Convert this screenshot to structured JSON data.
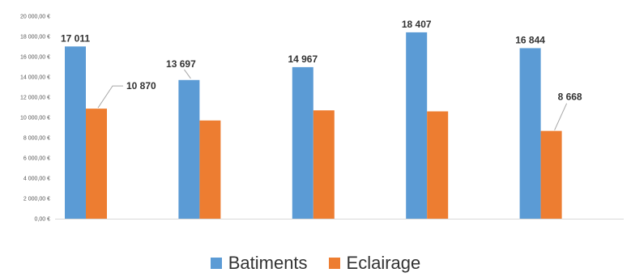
{
  "chart_data": {
    "type": "bar",
    "title": "",
    "xlabel": "",
    "ylabel": "",
    "categories": [
      "",
      "",
      "",
      "",
      ""
    ],
    "ylim": [
      0,
      20000
    ],
    "y_ticks": [
      "0,00 €",
      "2 000,00 €",
      "4 000,00 €",
      "6 000,00 €",
      "8 000,00 €",
      "10 000,00 €",
      "12 000,00 €",
      "14 000,00 €",
      "16 000,00 €",
      "18 000,00 €",
      "20 000,00 €"
    ],
    "grid": false,
    "legend_position": "bottom",
    "series": [
      {
        "name": "Batiments",
        "color": "#5B9BD5",
        "values": [
          17011,
          13697,
          14967,
          18407,
          16844
        ]
      },
      {
        "name": "Eclairage",
        "color": "#ED7D31",
        "values": [
          10870,
          9700,
          10700,
          10600,
          8668
        ]
      }
    ],
    "data_labels": [
      {
        "series": 0,
        "index": 0,
        "text": "17 011"
      },
      {
        "series": 0,
        "index": 1,
        "text": "13 697"
      },
      {
        "series": 0,
        "index": 2,
        "text": "14 967"
      },
      {
        "series": 0,
        "index": 3,
        "text": "18 407"
      },
      {
        "series": 0,
        "index": 4,
        "text": "16 844"
      },
      {
        "series": 1,
        "index": 0,
        "text": "10 870"
      },
      {
        "series": 1,
        "index": 4,
        "text": "8 668"
      }
    ]
  }
}
